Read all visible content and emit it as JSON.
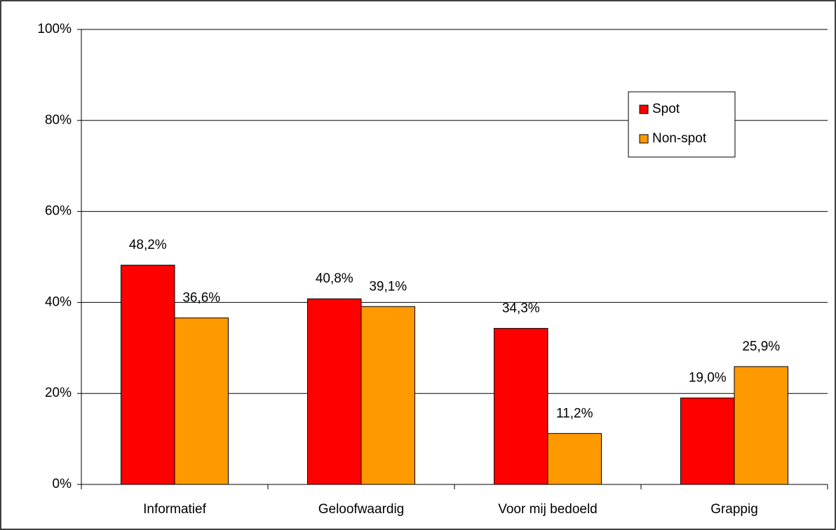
{
  "chart_data": {
    "type": "bar",
    "categories": [
      "Informatief",
      "Geloofwaardig",
      "Voor mij bedoeld",
      "Grappig"
    ],
    "series": [
      {
        "name": "Spot",
        "color": "#ff0000",
        "values": [
          48.2,
          40.8,
          34.3,
          19.0
        ],
        "value_labels": [
          "48,2%",
          "40,8%",
          "34,3%",
          "19,0%"
        ]
      },
      {
        "name": "Non-spot",
        "color": "#ff9900",
        "values": [
          36.6,
          39.1,
          11.2,
          25.9
        ],
        "value_labels": [
          "36,6%",
          "39,1%",
          "11,2%",
          "25,9%"
        ]
      }
    ],
    "ylim": [
      0,
      100
    ],
    "yticks": [
      {
        "value": 0,
        "label": "0%"
      },
      {
        "value": 20,
        "label": "20%"
      },
      {
        "value": 40,
        "label": "40%"
      },
      {
        "value": 60,
        "label": "60%"
      },
      {
        "value": 80,
        "label": "80%"
      },
      {
        "value": 100,
        "label": "100%"
      }
    ],
    "grid": true,
    "legend": "upper right"
  }
}
